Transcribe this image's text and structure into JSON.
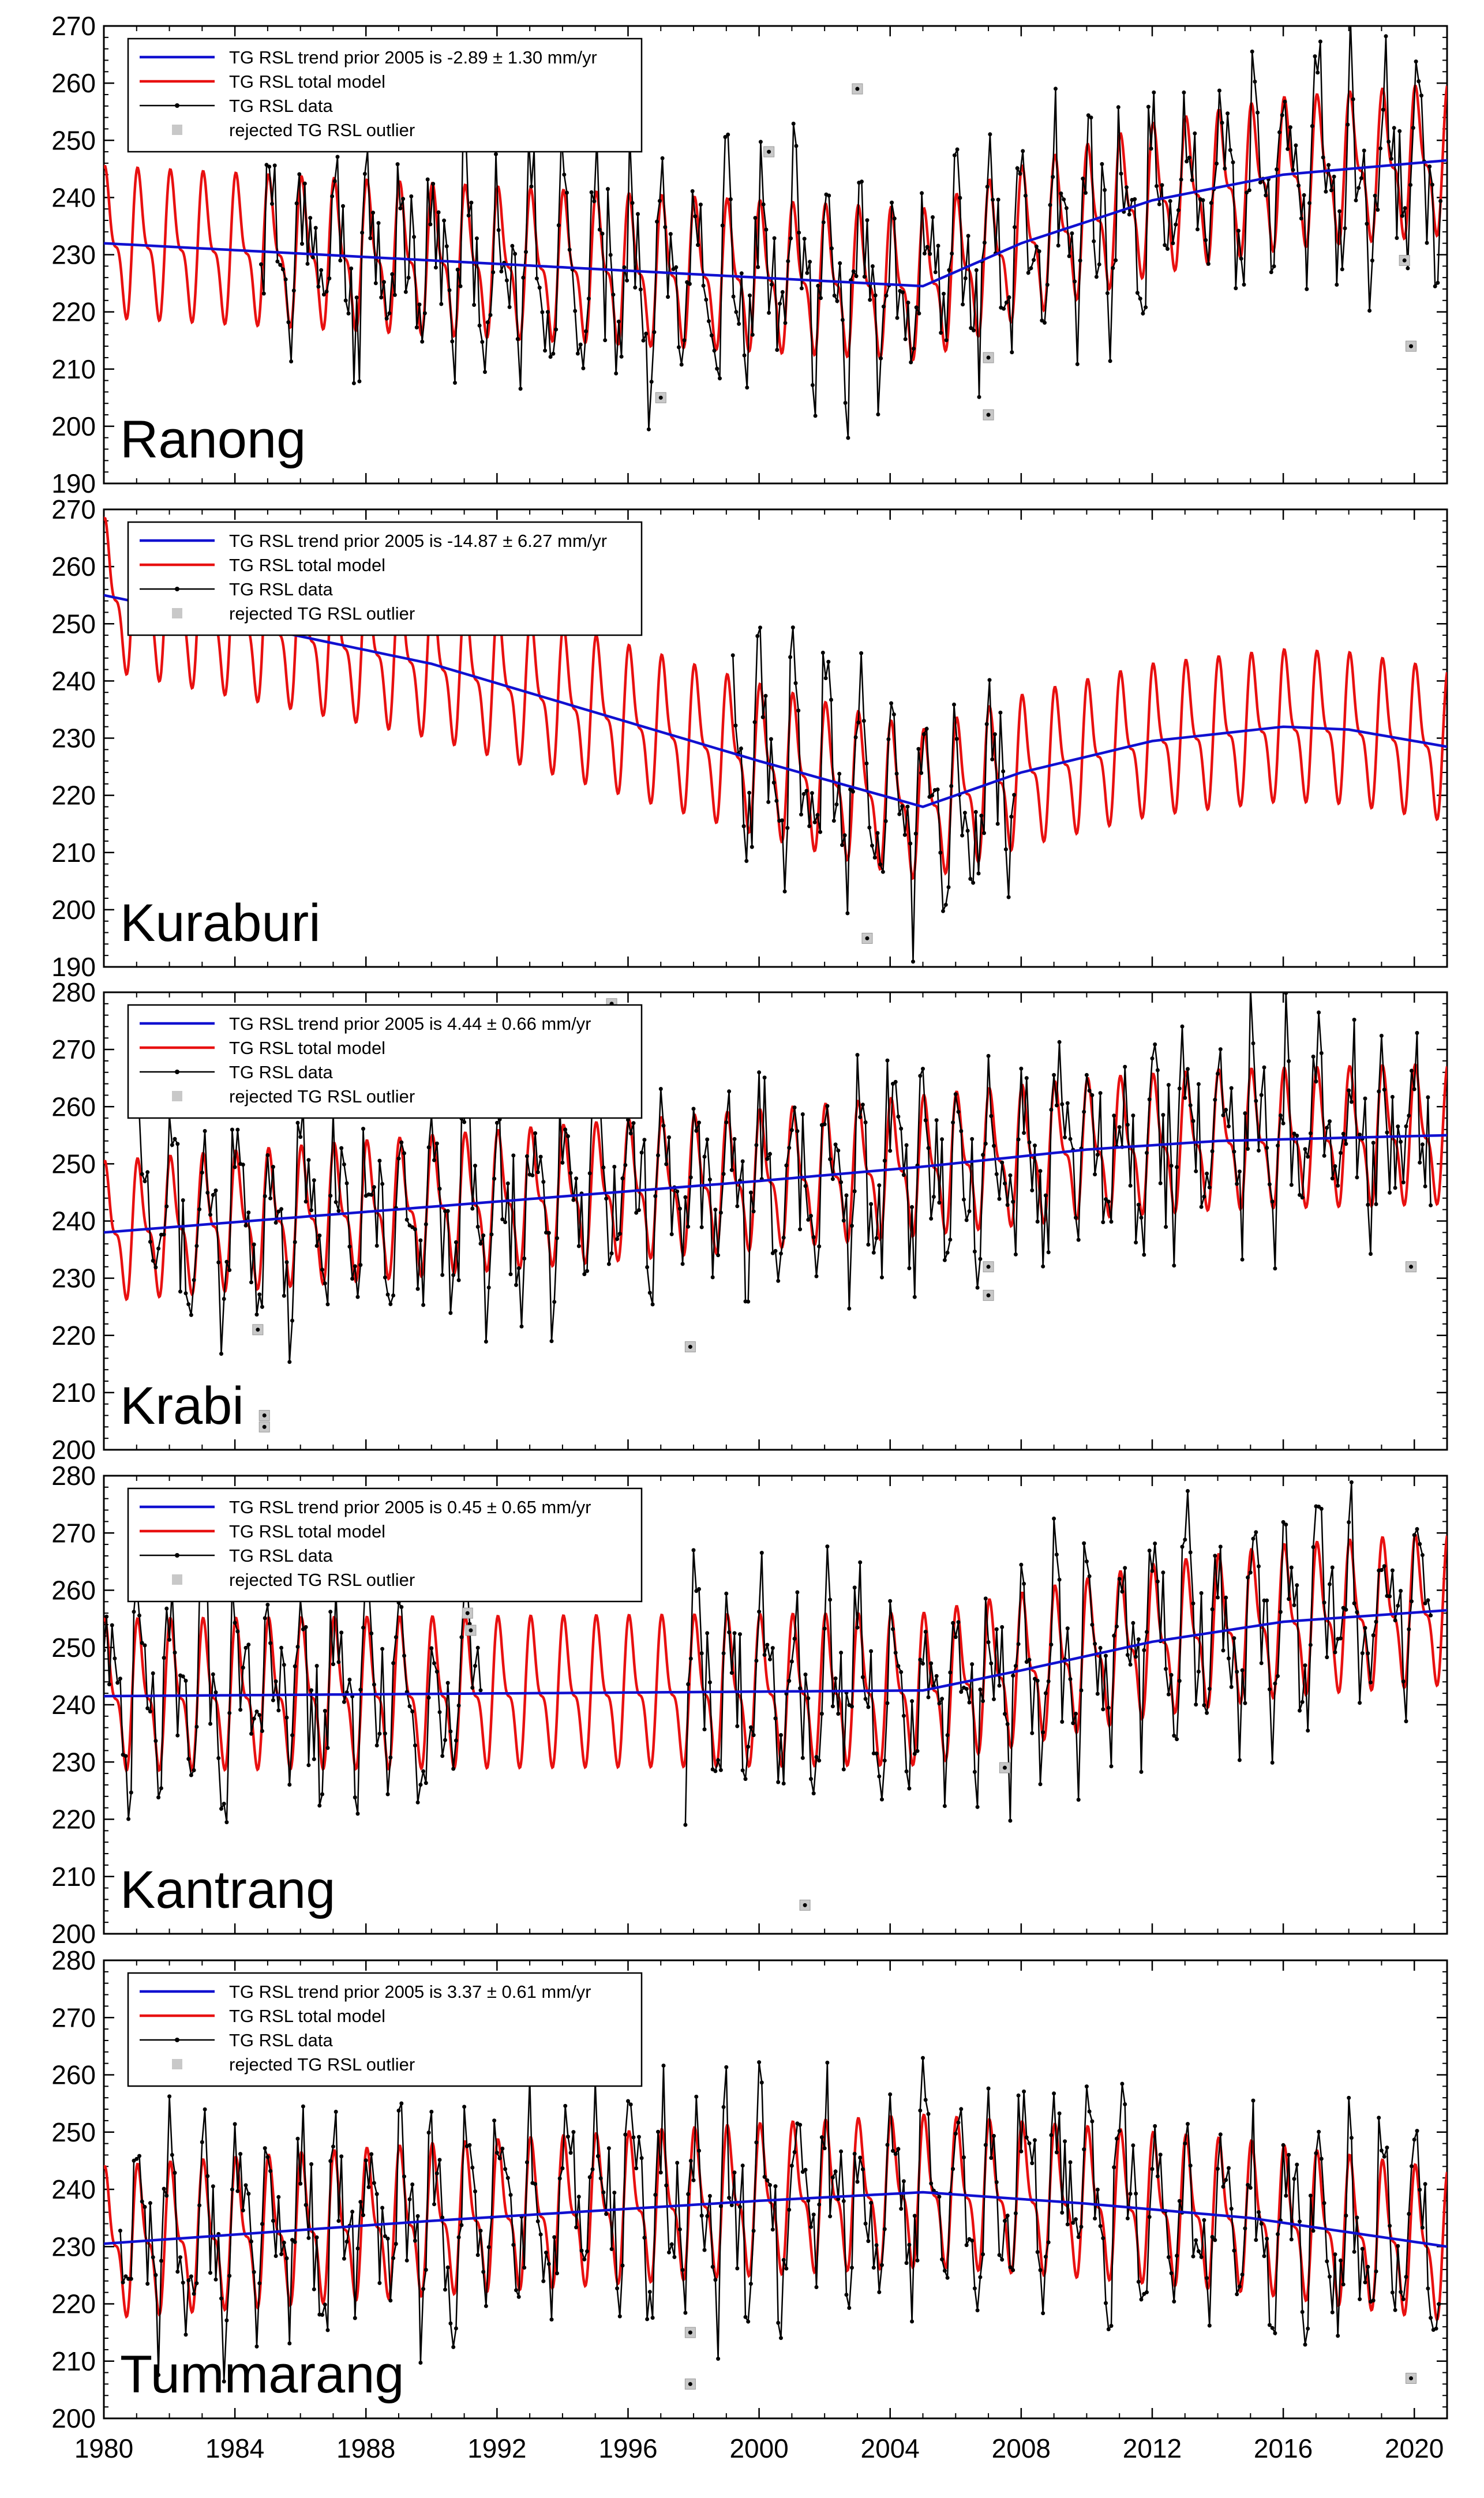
{
  "figure": {
    "x_ticks": [
      "1980",
      "1984",
      "1988",
      "1992",
      "1996",
      "2000",
      "2004",
      "2008",
      "2012",
      "2016",
      "2020"
    ],
    "x_tick_values": [
      1980,
      1984,
      1988,
      1992,
      1996,
      2000,
      2004,
      2008,
      2012,
      2016,
      2020
    ],
    "xlim": [
      1980,
      2021
    ],
    "colors": {
      "trend": "#1010d0",
      "model": "#e81010",
      "data": "#000000",
      "outlier": "#c8c8c8"
    }
  },
  "chart_data": [
    {
      "type": "line",
      "station": "Ranong",
      "legend": {
        "trend": "TG RSL trend prior 2005 is -2.89 ± 1.30 mm/yr",
        "model": "TG RSL total model",
        "data": "TG RSL data",
        "outlier": "rejected TG RSL outlier"
      },
      "ylim": [
        190,
        270
      ],
      "y_ticks": [
        "190",
        "200",
        "210",
        "220",
        "230",
        "240",
        "250",
        "260",
        "270"
      ],
      "y_tick_values": [
        190,
        200,
        210,
        220,
        230,
        240,
        250,
        260,
        270
      ],
      "trend_knots": [
        [
          1980,
          232
        ],
        [
          2005,
          224.5
        ],
        [
          2008,
          232
        ],
        [
          2012,
          239.5
        ],
        [
          2016,
          244
        ],
        [
          2021,
          246.5
        ]
      ],
      "seasonal": {
        "amp": 13,
        "phase": 0.9
      },
      "data_period": [
        1984.8,
        2020.8
      ],
      "data_seed": 11,
      "outliers": [
        [
          2000.3,
          248
        ],
        [
          2003,
          259
        ],
        [
          2007,
          212
        ],
        [
          2007,
          202
        ],
        [
          2019.7,
          229
        ],
        [
          2019.9,
          214
        ],
        [
          1997,
          205
        ]
      ]
    },
    {
      "type": "line",
      "station": "Kuraburi",
      "legend": {
        "trend": "TG RSL trend prior 2005 is -14.87 ± 6.27 mm/yr",
        "model": "TG RSL total model",
        "data": "TG RSL data",
        "outlier": "rejected TG RSL outlier"
      },
      "ylim": [
        190,
        270
      ],
      "y_ticks": [
        "190",
        "200",
        "210",
        "220",
        "230",
        "240",
        "250",
        "260",
        "270"
      ],
      "y_tick_values": [
        190,
        200,
        210,
        220,
        230,
        240,
        250,
        260,
        270
      ],
      "trend_knots": [
        [
          1980,
          255
        ],
        [
          1990,
          243
        ],
        [
          2000,
          226
        ],
        [
          2005,
          218
        ],
        [
          2008,
          224
        ],
        [
          2012,
          229.5
        ],
        [
          2016,
          232
        ],
        [
          2018,
          231.5
        ],
        [
          2021,
          228.5
        ]
      ],
      "seasonal": {
        "amp": 13,
        "phase": 0.9
      },
      "data_period": [
        1999.2,
        2007.8
      ],
      "data_seed": 23,
      "outliers": [
        [
          2003.3,
          195
        ]
      ]
    },
    {
      "type": "line",
      "station": "Krabi",
      "legend": {
        "trend": "TG RSL trend prior 2005 is 4.44 ± 0.66 mm/yr",
        "model": "TG RSL total model",
        "data": "TG RSL data",
        "outlier": "rejected TG RSL outlier"
      },
      "ylim": [
        200,
        280
      ],
      "y_ticks": [
        "200",
        "210",
        "220",
        "230",
        "240",
        "250",
        "260",
        "270",
        "280"
      ],
      "y_tick_values": [
        200,
        210,
        220,
        230,
        240,
        250,
        260,
        270,
        280
      ],
      "trend_knots": [
        [
          1980,
          238
        ],
        [
          1990,
          242.5
        ],
        [
          2000,
          247
        ],
        [
          2005,
          249.5
        ],
        [
          2010,
          252.5
        ],
        [
          2014,
          254
        ],
        [
          2021,
          255
        ]
      ],
      "seasonal": {
        "amp": 12,
        "phase": 0.9
      },
      "data_period": [
        1981,
        2020.5
      ],
      "data_seed": 37,
      "outliers": [
        [
          1984.9,
          206
        ],
        [
          1984.9,
          204
        ],
        [
          1984.7,
          221
        ],
        [
          1997.9,
          218
        ],
        [
          2007,
          232
        ],
        [
          2007,
          227
        ],
        [
          2019.9,
          232
        ],
        [
          1995.5,
          278
        ]
      ]
    },
    {
      "type": "line",
      "station": "Kantrang",
      "legend": {
        "trend": "TG RSL trend prior 2005 is 0.45 ± 0.65 mm/yr",
        "model": "TG RSL total model",
        "data": "TG RSL data",
        "outlier": "rejected TG RSL outlier"
      },
      "ylim": [
        200,
        280
      ],
      "y_ticks": [
        "200",
        "210",
        "220",
        "230",
        "240",
        "250",
        "260",
        "270",
        "280"
      ],
      "y_tick_values": [
        200,
        210,
        220,
        230,
        240,
        250,
        260,
        270,
        280
      ],
      "trend_knots": [
        [
          1980,
          241.5
        ],
        [
          2005,
          242.5
        ],
        [
          2008,
          246
        ],
        [
          2012,
          251
        ],
        [
          2016,
          254.5
        ],
        [
          2021,
          256.5
        ]
      ],
      "seasonal": {
        "amp": 13,
        "phase": 0.9
      },
      "data_period": [
        1980,
        2020.5
      ],
      "data_seed": 51,
      "gap": [
        1991.5,
        1997.7
      ],
      "outliers": [
        [
          1991.1,
          256
        ],
        [
          1991.2,
          253
        ],
        [
          2001.4,
          205
        ],
        [
          2007.5,
          229
        ]
      ]
    },
    {
      "type": "line",
      "station": "Tummarang",
      "legend": {
        "trend": "TG RSL trend prior 2005 is 3.37 ± 0.61 mm/yr",
        "model": "TG RSL total model",
        "data": "TG RSL data",
        "outlier": "rejected TG RSL outlier"
      },
      "ylim": [
        200,
        280
      ],
      "y_ticks": [
        "200",
        "210",
        "220",
        "230",
        "240",
        "250",
        "260",
        "270",
        "280"
      ],
      "y_tick_values": [
        200,
        210,
        220,
        230,
        240,
        250,
        260,
        270,
        280
      ],
      "trend_knots": [
        [
          1980,
          230.5
        ],
        [
          1990,
          234.5
        ],
        [
          2000,
          238
        ],
        [
          2005,
          239.5
        ],
        [
          2010,
          237.5
        ],
        [
          2015,
          235
        ],
        [
          2021,
          230
        ]
      ],
      "seasonal": {
        "amp": 13,
        "phase": 0.9
      },
      "data_period": [
        1980.5,
        2020.8
      ],
      "data_seed": 73,
      "outliers": [
        [
          1997.9,
          215
        ],
        [
          1997.9,
          206
        ],
        [
          2019.9,
          207
        ]
      ]
    }
  ]
}
